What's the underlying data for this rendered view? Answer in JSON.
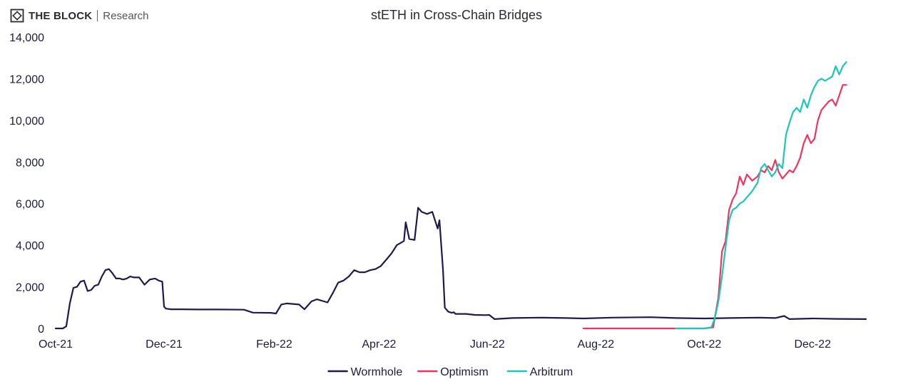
{
  "header": {
    "brand": "THE BLOCK",
    "brand_sub": "Research"
  },
  "chart_data": {
    "type": "line",
    "title": "stETH in Cross-Chain Bridges",
    "xlabel": "",
    "ylabel": "",
    "ylim": [
      0,
      14000
    ],
    "yticks": [
      0,
      2000,
      4000,
      6000,
      8000,
      10000,
      12000,
      14000
    ],
    "ytick_labels": [
      "0",
      "2,000",
      "4,000",
      "6,000",
      "8,000",
      "10,000",
      "12,000",
      "14,000"
    ],
    "xlim": [
      "2021-10-01",
      "2022-12-31"
    ],
    "xticks": [
      "2021-10-01",
      "2021-12-01",
      "2022-02-01",
      "2022-04-01",
      "2022-06-01",
      "2022-08-01",
      "2022-10-01",
      "2022-12-01"
    ],
    "xtick_labels": [
      "Oct-21",
      "Dec-21",
      "Feb-22",
      "Apr-22",
      "Jun-22",
      "Aug-22",
      "Oct-22",
      "Dec-22"
    ],
    "legend_position": "bottom",
    "grid": false,
    "series": [
      {
        "name": "Wormhole",
        "color": "#1f1a4b",
        "x": [
          "2021-10-01",
          "2021-10-05",
          "2021-10-07",
          "2021-10-09",
          "2021-10-11",
          "2021-10-13",
          "2021-10-15",
          "2021-10-17",
          "2021-10-19",
          "2021-10-21",
          "2021-10-23",
          "2021-10-25",
          "2021-10-27",
          "2021-10-29",
          "2021-10-31",
          "2021-11-02",
          "2021-11-04",
          "2021-11-06",
          "2021-11-08",
          "2021-11-10",
          "2021-11-12",
          "2021-11-14",
          "2021-11-17",
          "2021-11-20",
          "2021-11-23",
          "2021-11-26",
          "2021-11-28",
          "2021-11-30",
          "2021-12-01",
          "2021-12-02",
          "2021-12-05",
          "2021-12-10",
          "2021-12-20",
          "2022-01-01",
          "2022-01-15",
          "2022-01-20",
          "2022-01-30",
          "2022-02-02",
          "2022-02-05",
          "2022-02-08",
          "2022-02-15",
          "2022-02-18",
          "2022-02-22",
          "2022-02-25",
          "2022-03-01",
          "2022-03-03",
          "2022-03-06",
          "2022-03-09",
          "2022-03-12",
          "2022-03-15",
          "2022-03-18",
          "2022-03-21",
          "2022-03-24",
          "2022-03-27",
          "2022-03-30",
          "2022-04-02",
          "2022-04-05",
          "2022-04-08",
          "2022-04-11",
          "2022-04-13",
          "2022-04-15",
          "2022-04-16",
          "2022-04-18",
          "2022-04-21",
          "2022-04-23",
          "2022-04-25",
          "2022-04-28",
          "2022-05-01",
          "2022-05-04",
          "2022-05-05",
          "2022-05-07",
          "2022-05-08",
          "2022-05-10",
          "2022-05-12",
          "2022-05-13",
          "2022-05-14",
          "2022-05-15",
          "2022-05-20",
          "2022-05-25",
          "2022-05-31",
          "2022-06-02",
          "2022-06-05",
          "2022-06-15",
          "2022-07-01",
          "2022-07-15",
          "2022-07-25",
          "2022-08-10",
          "2022-09-01",
          "2022-09-15",
          "2022-10-01",
          "2022-10-15",
          "2022-11-01",
          "2022-11-10",
          "2022-11-15",
          "2022-11-18",
          "2022-12-01",
          "2022-12-15",
          "2022-12-31"
        ],
        "values": [
          0,
          0,
          100,
          1200,
          1950,
          2000,
          2250,
          2300,
          1800,
          1850,
          2050,
          2100,
          2500,
          2800,
          2850,
          2650,
          2400,
          2400,
          2350,
          2400,
          2500,
          2450,
          2450,
          2100,
          2350,
          2400,
          2300,
          2250,
          1050,
          950,
          920,
          920,
          910,
          910,
          900,
          760,
          750,
          720,
          1150,
          1200,
          1150,
          920,
          1300,
          1400,
          1300,
          1250,
          1700,
          2200,
          2300,
          2500,
          2800,
          2700,
          2700,
          2800,
          2850,
          3000,
          3300,
          3600,
          4000,
          4100,
          4200,
          5100,
          4300,
          4250,
          5800,
          5600,
          5500,
          5600,
          4800,
          5200,
          2800,
          1000,
          800,
          750,
          780,
          700,
          700,
          700,
          650,
          640,
          650,
          450,
          500,
          520,
          500,
          480,
          520,
          540,
          500,
          480,
          500,
          520,
          500,
          600,
          450,
          480,
          460,
          450
        ]
      },
      {
        "name": "Optimism",
        "color": "#f0345e",
        "x": [
          "2022-07-25",
          "2022-09-01",
          "2022-09-15",
          "2022-10-01",
          "2022-10-06",
          "2022-10-09",
          "2022-10-11",
          "2022-10-13",
          "2022-10-15",
          "2022-10-17",
          "2022-10-19",
          "2022-10-21",
          "2022-10-23",
          "2022-10-25",
          "2022-10-28",
          "2022-10-31",
          "2022-11-02",
          "2022-11-04",
          "2022-11-06",
          "2022-11-08",
          "2022-11-10",
          "2022-11-12",
          "2022-11-14",
          "2022-11-16",
          "2022-11-18",
          "2022-11-20",
          "2022-11-22",
          "2022-11-24",
          "2022-11-26",
          "2022-11-28",
          "2022-11-30",
          "2022-12-02",
          "2022-12-04",
          "2022-12-06",
          "2022-12-08",
          "2022-12-10",
          "2022-12-12",
          "2022-12-14",
          "2022-12-16",
          "2022-12-18",
          "2022-12-20"
        ],
        "values": [
          0,
          0,
          0,
          0,
          50,
          1500,
          3700,
          4200,
          5700,
          6200,
          6500,
          7300,
          6900,
          7400,
          7100,
          7300,
          7600,
          7500,
          7800,
          7600,
          8100,
          7500,
          7200,
          7400,
          7600,
          7500,
          7800,
          8200,
          8900,
          9300,
          8900,
          9100,
          10000,
          10500,
          10700,
          10900,
          11000,
          10700,
          11200,
          11700,
          11700
        ]
      },
      {
        "name": "Arbitrum",
        "color": "#1ac7b8",
        "x": [
          "2022-09-15",
          "2022-10-01",
          "2022-10-05",
          "2022-10-07",
          "2022-10-09",
          "2022-10-11",
          "2022-10-13",
          "2022-10-15",
          "2022-10-17",
          "2022-10-19",
          "2022-10-21",
          "2022-10-23",
          "2022-10-25",
          "2022-10-28",
          "2022-10-31",
          "2022-11-02",
          "2022-11-04",
          "2022-11-06",
          "2022-11-08",
          "2022-11-10",
          "2022-11-12",
          "2022-11-14",
          "2022-11-16",
          "2022-11-18",
          "2022-11-20",
          "2022-11-22",
          "2022-11-24",
          "2022-11-26",
          "2022-11-28",
          "2022-11-30",
          "2022-12-02",
          "2022-12-04",
          "2022-12-06",
          "2022-12-08",
          "2022-12-10",
          "2022-12-12",
          "2022-12-14",
          "2022-12-16",
          "2022-12-18",
          "2022-12-20"
        ],
        "values": [
          0,
          0,
          50,
          500,
          1300,
          2500,
          3900,
          5200,
          5700,
          5800,
          6000,
          6100,
          6300,
          6600,
          7000,
          7700,
          7900,
          7600,
          7300,
          7500,
          7900,
          7700,
          9300,
          9900,
          10400,
          10600,
          10400,
          11000,
          10600,
          11200,
          11600,
          11900,
          12000,
          11900,
          12000,
          12100,
          12600,
          12200,
          12600,
          12800
        ]
      }
    ]
  }
}
